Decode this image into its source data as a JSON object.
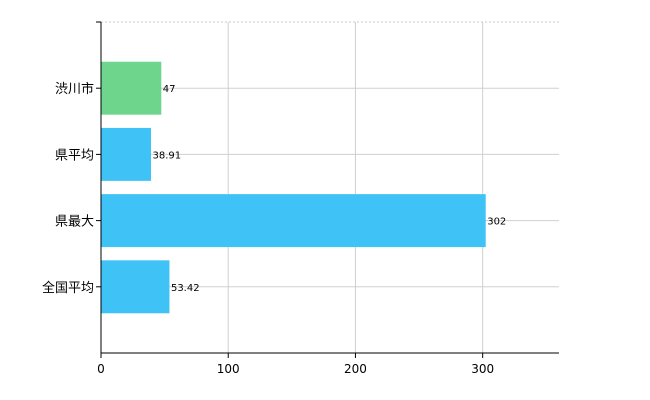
{
  "chart_data": {
    "type": "bar",
    "orientation": "horizontal",
    "categories": [
      "渋川市",
      "県平均",
      "県最大",
      "全国平均"
    ],
    "values": [
      47,
      38.91,
      302,
      53.42
    ],
    "value_labels": [
      "47",
      "38.91",
      "302",
      "53.42"
    ],
    "bar_colors": [
      "#6dd58c",
      "#3fc3f7",
      "#3fc3f7",
      "#3fc3f7"
    ],
    "xlim": [
      0,
      360
    ],
    "xticks": [
      0,
      100,
      200,
      300
    ],
    "xtick_labels": [
      "0",
      "100",
      "200",
      "300"
    ],
    "grid": true,
    "legend": "none"
  }
}
